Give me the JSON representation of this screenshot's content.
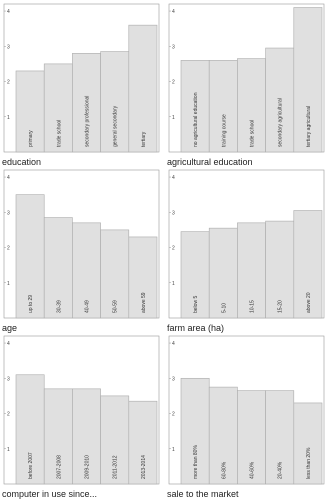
{
  "chart_data": [
    {
      "type": "bar",
      "x_label": "education",
      "categories": [
        "primary",
        "trade school",
        "secondary professional",
        "general secondary",
        "tertiary"
      ],
      "values": [
        2.3,
        2.5,
        2.8,
        2.85,
        3.6
      ],
      "color": "#e0e0e0",
      "ylim": [
        0,
        4.2
      ],
      "yticks": [
        1,
        2,
        3,
        4
      ]
    },
    {
      "type": "bar",
      "x_label": "agricultural education",
      "categories": [
        "no agricultural education",
        "training course",
        "trade school",
        "secondary agricultural",
        "tertiary agricultural"
      ],
      "values": [
        2.6,
        2.6,
        2.65,
        2.95,
        4.1
      ],
      "color": "#e0e0e0",
      "ylim": [
        0,
        4.2
      ],
      "yticks": [
        1,
        2,
        3,
        4
      ]
    },
    {
      "type": "bar",
      "x_label": "age",
      "categories": [
        "up to 29",
        "30-39",
        "40-49",
        "50-59",
        "above 59"
      ],
      "values": [
        3.5,
        2.85,
        2.7,
        2.5,
        2.3
      ],
      "color": "#e0e0e0",
      "ylim": [
        0,
        4.2
      ],
      "yticks": [
        1,
        2,
        3,
        4
      ]
    },
    {
      "type": "bar",
      "x_label": "farm area (ha)",
      "categories": [
        "below 5",
        "5-10",
        "10-15",
        "15-20",
        "above 20"
      ],
      "values": [
        2.45,
        2.55,
        2.7,
        2.75,
        3.05
      ],
      "color": "#e0e0e0",
      "ylim": [
        0,
        4.2
      ],
      "yticks": [
        1,
        2,
        3,
        4
      ]
    },
    {
      "type": "bar",
      "x_label": "computer in use since...",
      "categories": [
        "before 2007",
        "2007-2008",
        "2009-2010",
        "2011-2012",
        "2013-2014"
      ],
      "values": [
        3.1,
        2.7,
        2.7,
        2.5,
        2.35
      ],
      "color": "#e0e0e0",
      "ylim": [
        0,
        4.2
      ],
      "yticks": [
        1,
        2,
        3,
        4
      ]
    },
    {
      "type": "bar",
      "x_label": "sale to the market",
      "categories": [
        "more than 80%",
        "60-80%",
        "40-60%",
        "20-40%",
        "less than 20%"
      ],
      "values": [
        3.0,
        2.75,
        2.65,
        2.65,
        2.3
      ],
      "color": "#e0e0e0",
      "ylim": [
        0,
        4.2
      ],
      "yticks": [
        1,
        2,
        3,
        4
      ]
    }
  ]
}
